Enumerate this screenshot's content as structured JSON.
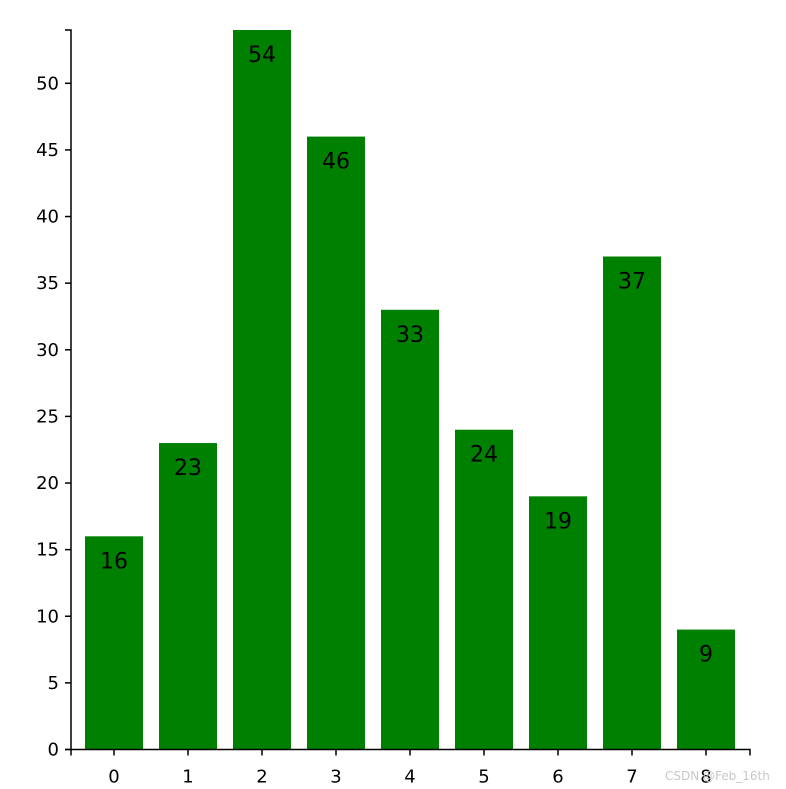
{
  "chart_data": {
    "type": "bar",
    "title": "",
    "xlabel": "",
    "ylabel": "",
    "categories": [
      "0",
      "1",
      "2",
      "3",
      "4",
      "5",
      "6",
      "7",
      "8"
    ],
    "values": [
      16,
      23,
      54,
      46,
      33,
      24,
      19,
      37,
      9
    ],
    "ylim": [
      0,
      54
    ],
    "yticks": [
      0,
      5,
      10,
      15,
      20,
      25,
      30,
      35,
      40,
      45,
      50
    ],
    "grid": false,
    "legend": "none",
    "data_labels": "inside-top",
    "colors": {
      "bar": "#008000",
      "axis": "#000000",
      "label": "#000000"
    }
  },
  "watermark": "CSDN @Feb_16th"
}
